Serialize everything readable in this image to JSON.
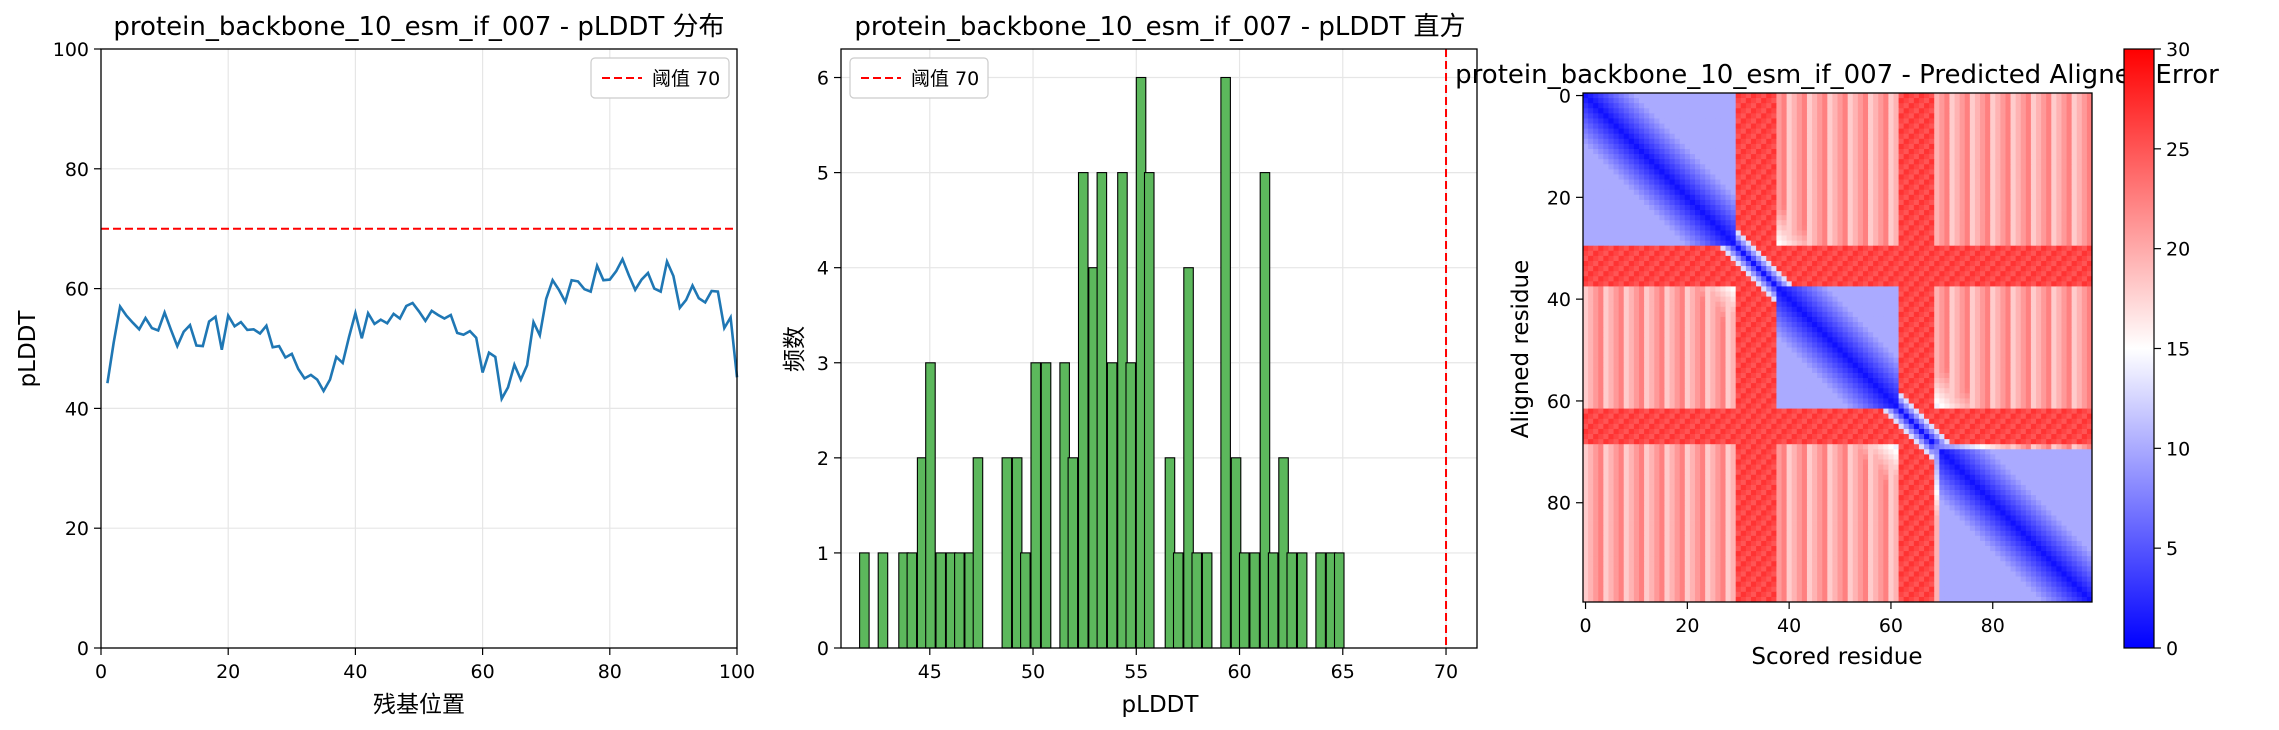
{
  "colors": {
    "line": "#1f77b4",
    "threshold": "#ff0000",
    "bar_fill": "#5cb85c",
    "bar_edge": "#000000",
    "grid": "#e6e6e6"
  },
  "chart_data": [
    {
      "type": "line",
      "title": "protein_backbone_10_esm_if_007 - pLDDT 分布",
      "xlabel": "残基位置",
      "ylabel": "pLDDT",
      "xlim": [
        0,
        100
      ],
      "ylim": [
        0,
        100
      ],
      "xticks": [
        0,
        20,
        40,
        60,
        80,
        100
      ],
      "yticks": [
        0,
        20,
        40,
        60,
        80,
        100
      ],
      "grid": true,
      "legend": {
        "placement": "top-right",
        "entries": [
          "阈值 70"
        ]
      },
      "threshold": 70,
      "series": [
        {
          "x": [
            1,
            2,
            3,
            4,
            5,
            6,
            7,
            8,
            9,
            10,
            11,
            12,
            13,
            14,
            15,
            16,
            17,
            18,
            19,
            20,
            21,
            22,
            23,
            24,
            25,
            26,
            27,
            28,
            29,
            30,
            31,
            32,
            33,
            34,
            35,
            36,
            37,
            38,
            39,
            40,
            41,
            42,
            43,
            44,
            45,
            46,
            47,
            48,
            49,
            50,
            51,
            52,
            53,
            54,
            55,
            56,
            57,
            58,
            59,
            60,
            61,
            62,
            63,
            64,
            65,
            66,
            67,
            68,
            69,
            70,
            71,
            72,
            73,
            74,
            75,
            76,
            77,
            78,
            79,
            80,
            81,
            82,
            83,
            84,
            85,
            86,
            87,
            88,
            89,
            90,
            91,
            92,
            93,
            94,
            95,
            96,
            97,
            98,
            99,
            100
          ],
          "y": [
            44.2,
            51.0,
            57.0,
            55.5,
            54.3,
            53.2,
            55.1,
            53.4,
            53.0,
            56.0,
            53.1,
            50.4,
            52.8,
            53.9,
            50.5,
            50.4,
            54.5,
            55.3,
            49.8,
            55.5,
            53.7,
            54.4,
            53.1,
            53.2,
            52.5,
            53.8,
            50.2,
            50.4,
            48.5,
            49.1,
            46.6,
            45.0,
            45.6,
            44.8,
            42.9,
            44.8,
            48.6,
            47.6,
            51.9,
            55.9,
            51.7,
            55.9,
            54.1,
            54.8,
            54.2,
            55.8,
            55.0,
            57.1,
            57.6,
            56.2,
            54.6,
            56.3,
            55.6,
            55.0,
            55.6,
            52.6,
            52.3,
            52.9,
            51.8,
            46.0,
            49.3,
            48.6,
            41.6,
            43.5,
            47.3,
            44.8,
            47.2,
            54.4,
            52.2,
            58.3,
            61.4,
            59.8,
            57.8,
            61.4,
            61.2,
            59.9,
            59.5,
            63.8,
            61.4,
            61.5,
            62.9,
            64.9,
            62.2,
            59.8,
            61.5,
            62.6,
            60.0,
            59.5,
            64.5,
            62.1,
            56.8,
            58.1,
            60.5,
            58.4,
            57.7,
            59.6,
            59.5,
            53.4,
            55.2,
            45.2
          ]
        }
      ]
    },
    {
      "type": "bar",
      "title": "protein_backbone_10_esm_if_007 - pLDDT 直方",
      "xlabel": "pLDDT",
      "ylabel": "频数",
      "xlim": [
        40.7,
        71.5
      ],
      "ylim": [
        0,
        6.3
      ],
      "xticks": [
        45,
        50,
        55,
        60,
        65,
        70
      ],
      "yticks": [
        0,
        1,
        2,
        3,
        4,
        5,
        6
      ],
      "grid": true,
      "legend": {
        "placement": "top-left",
        "entries": [
          "阈值 70"
        ]
      },
      "threshold": 70,
      "bin_width": 0.46,
      "bin_starts": [
        41.6,
        42.1,
        42.5,
        43.0,
        43.5,
        43.9,
        44.4,
        44.8,
        45.3,
        45.8,
        46.2,
        46.7,
        47.1,
        47.6,
        48.1,
        48.5,
        49.0,
        49.4,
        49.9,
        50.4,
        50.8,
        51.3,
        51.7,
        52.2,
        52.7,
        53.1,
        53.6,
        54.1,
        54.5,
        55.0,
        55.4,
        55.9,
        56.4,
        56.8,
        57.3,
        57.7,
        58.2,
        58.7,
        59.1,
        59.6,
        60.0,
        60.5,
        61.0,
        61.4,
        61.9,
        62.3,
        62.8,
        63.3,
        63.7,
        64.2,
        64.6
      ],
      "values": [
        1,
        0,
        1,
        0,
        1,
        1,
        2,
        3,
        1,
        1,
        1,
        1,
        2,
        0,
        0,
        2,
        2,
        1,
        3,
        3,
        0,
        3,
        2,
        5,
        4,
        5,
        3,
        5,
        3,
        6,
        5,
        0,
        2,
        1,
        4,
        1,
        1,
        0,
        6,
        2,
        1,
        1,
        5,
        1,
        2,
        1,
        1,
        0,
        1,
        1,
        1
      ]
    },
    {
      "type": "heatmap",
      "title": "protein_backbone_10_esm_if_007 - Predicted Aligned Error",
      "xlabel": "Scored residue",
      "ylabel": "Aligned residue",
      "xticks": [
        0,
        20,
        40,
        60,
        80
      ],
      "yticks": [
        0,
        20,
        40,
        60,
        80
      ],
      "size": 100,
      "colormap": "bwr",
      "vmin": 0,
      "vmax": 30,
      "colorbar_ticks": [
        0,
        5,
        10,
        15,
        20,
        25,
        30
      ],
      "blocks": [
        [
          0,
          30
        ],
        [
          38,
          62
        ],
        [
          70,
          99
        ]
      ],
      "loops": [
        [
          30,
          37
        ],
        [
          62,
          68
        ]
      ],
      "diag_base": 1,
      "diag_slope": 0.9,
      "intra_block_max": 10,
      "inter_block": 18,
      "loop_level": 27
    }
  ]
}
